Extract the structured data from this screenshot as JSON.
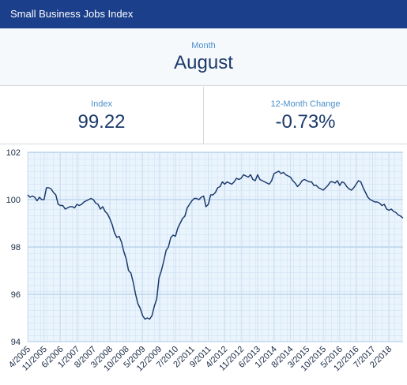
{
  "header": {
    "title": "Small Business Jobs Index"
  },
  "month": {
    "label": "Month",
    "value": "August"
  },
  "stats": [
    {
      "label": "Index",
      "value": "99.22"
    },
    {
      "label": "12-Month Change",
      "value": "-0.73%"
    }
  ],
  "chart_data": {
    "type": "line",
    "categories": [
      "4/2005",
      null,
      null,
      null,
      null,
      null,
      null,
      "11/2005",
      null,
      null,
      null,
      null,
      null,
      null,
      "6/2006",
      null,
      null,
      null,
      null,
      null,
      null,
      "1/2007",
      null,
      null,
      null,
      null,
      null,
      null,
      "8/2007",
      null,
      null,
      null,
      null,
      null,
      null,
      "3/2008",
      null,
      null,
      null,
      null,
      null,
      null,
      "10/2008",
      null,
      null,
      null,
      null,
      null,
      null,
      "5/2009",
      null,
      null,
      null,
      null,
      null,
      null,
      "12/2009",
      null,
      null,
      null,
      null,
      null,
      null,
      "7/2010",
      null,
      null,
      null,
      null,
      null,
      null,
      "2/2011",
      null,
      null,
      null,
      null,
      null,
      null,
      "9/2011",
      null,
      null,
      null,
      null,
      null,
      null,
      "4/2012",
      null,
      null,
      null,
      null,
      null,
      null,
      "11/2012",
      null,
      null,
      null,
      null,
      null,
      null,
      "6/2013",
      null,
      null,
      null,
      null,
      null,
      null,
      "1/2014",
      null,
      null,
      null,
      null,
      null,
      null,
      "8/2014",
      null,
      null,
      null,
      null,
      null,
      null,
      "3/2015",
      null,
      null,
      null,
      null,
      null,
      null,
      "10/2015",
      null,
      null,
      null,
      null,
      null,
      null,
      "5/2016",
      null,
      null,
      null,
      null,
      null,
      null,
      "12/2016",
      null,
      null,
      null,
      null,
      null,
      null,
      "7/2017",
      null,
      null,
      null,
      null,
      null,
      null,
      "2/2018",
      null,
      null,
      null,
      null,
      null,
      null
    ],
    "series": [
      {
        "name": "Index",
        "color": "#1b3a6b",
        "values": [
          100.2,
          100.1,
          100.15,
          100.1,
          99.95,
          100.1,
          100.0,
          100.0,
          100.5,
          100.5,
          100.45,
          100.3,
          100.2,
          99.8,
          99.75,
          99.75,
          99.6,
          99.65,
          99.7,
          99.7,
          99.65,
          99.8,
          99.75,
          99.8,
          99.9,
          99.95,
          100.0,
          100.05,
          100.0,
          99.85,
          99.8,
          99.6,
          99.7,
          99.5,
          99.4,
          99.2,
          98.95,
          98.6,
          98.4,
          98.45,
          98.2,
          97.8,
          97.5,
          97.0,
          96.9,
          96.5,
          96.0,
          95.6,
          95.4,
          95.1,
          94.95,
          95.0,
          94.95,
          95.1,
          95.5,
          95.8,
          96.7,
          97.0,
          97.4,
          97.85,
          98.0,
          98.4,
          98.5,
          98.45,
          98.8,
          99.0,
          99.2,
          99.3,
          99.65,
          99.8,
          99.95,
          100.05,
          100.05,
          100.0,
          100.1,
          100.15,
          99.7,
          99.8,
          100.2,
          100.2,
          100.3,
          100.5,
          100.55,
          100.75,
          100.65,
          100.75,
          100.7,
          100.65,
          100.75,
          100.9,
          100.85,
          100.9,
          101.05,
          101.0,
          100.95,
          101.05,
          100.85,
          100.8,
          101.05,
          100.85,
          100.8,
          100.75,
          100.7,
          100.65,
          100.8,
          101.1,
          101.15,
          101.2,
          101.1,
          101.15,
          101.05,
          101.0,
          100.95,
          100.8,
          100.7,
          100.55,
          100.65,
          100.8,
          100.85,
          100.8,
          100.75,
          100.75,
          100.6,
          100.6,
          100.5,
          100.45,
          100.4,
          100.5,
          100.6,
          100.75,
          100.75,
          100.7,
          100.8,
          100.6,
          100.75,
          100.7,
          100.55,
          100.45,
          100.4,
          100.5,
          100.65,
          100.8,
          100.75,
          100.5,
          100.3,
          100.1,
          100.0,
          99.95,
          99.9,
          99.9,
          99.85,
          99.75,
          99.8,
          99.6,
          99.55,
          99.6,
          99.5,
          99.45,
          99.35,
          99.3,
          99.22
        ]
      }
    ],
    "ylim": [
      94,
      102
    ],
    "yticks": [
      94,
      96,
      98,
      100,
      102
    ],
    "grid": true
  }
}
